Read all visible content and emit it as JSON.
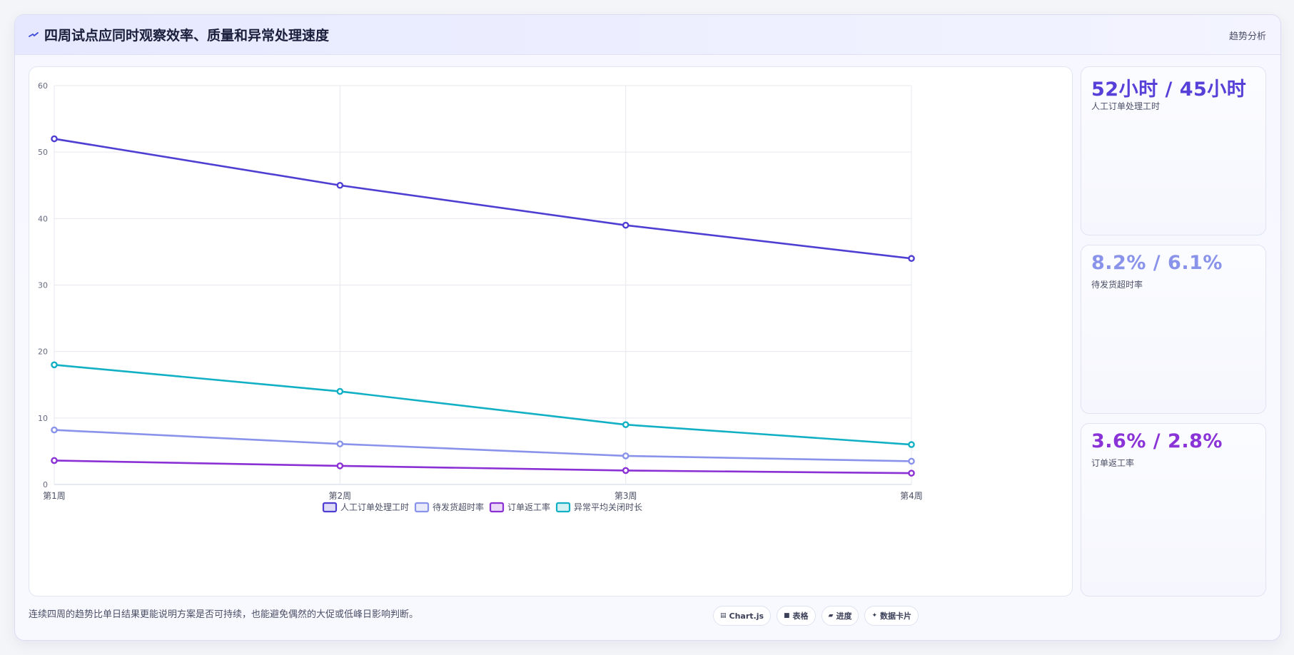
{
  "header": {
    "title": "四周试点应同时观察效率、质量和异常处理速度",
    "right_label": "趋势分析"
  },
  "kpis": [
    {
      "value": "52小时 / 45小时",
      "label": "人工订单处理工时",
      "color": "#5540d8"
    },
    {
      "value": "8.2% / 6.1%",
      "label": "待发货超时率",
      "color": "#8a93ea"
    },
    {
      "value": "3.6% / 2.8%",
      "label": "订单返工率",
      "color": "#8a34d8"
    }
  ],
  "footer": {
    "text": "连续四周的趋势比单日结果更能说明方案是否可持续，也能避免偶然的大促或低峰日影响判断。",
    "chips": [
      {
        "icon": "chart-icon",
        "label": "Chart.js"
      },
      {
        "icon": "table-icon",
        "label": "表格"
      },
      {
        "icon": "progress-icon",
        "label": "进度"
      },
      {
        "icon": "card-icon",
        "label": "数据卡片"
      }
    ]
  },
  "chart_data": {
    "type": "line",
    "categories": [
      "第1周",
      "第2周",
      "第3周",
      "第4周"
    ],
    "ylim": [
      0,
      60
    ],
    "yticks": [
      0,
      10,
      20,
      30,
      40,
      50,
      60
    ],
    "grid": true,
    "legend_position": "bottom",
    "series": [
      {
        "name": "人工订单处理工时",
        "values": [
          52,
          45,
          39,
          34
        ],
        "color": "#4e3fd2"
      },
      {
        "name": "待发货超时率",
        "values": [
          8.2,
          6.1,
          4.3,
          3.5
        ],
        "color": "#8a93ea"
      },
      {
        "name": "订单返工率",
        "values": [
          3.6,
          2.8,
          2.1,
          1.7
        ],
        "color": "#8a30d4"
      },
      {
        "name": "异常平均关闭时长",
        "values": [
          18,
          14,
          9,
          6
        ],
        "color": "#12b0c4"
      }
    ]
  }
}
